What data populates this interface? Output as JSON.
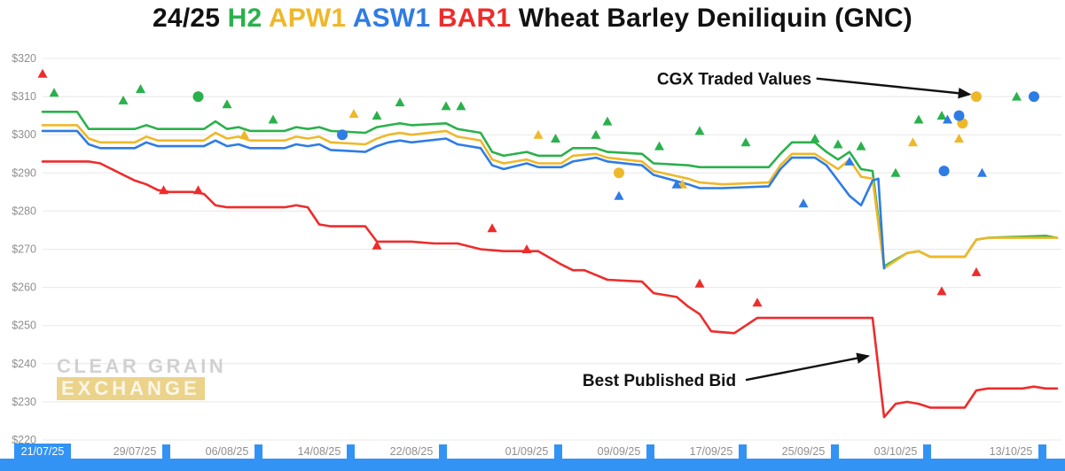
{
  "colors": {
    "h2_green": "#2bb14c",
    "apw1_gold": "#efb829",
    "asw1_blue": "#2e7ce4",
    "bar1_red": "#ee2c2c",
    "selection": "#3393f5",
    "axis_text": "#8f8f8f",
    "gridline": "#e8e8e8"
  },
  "title": {
    "parts": [
      {
        "text": "24/25 ",
        "color": "#111111"
      },
      {
        "text": "H2 ",
        "color": "#2bb14c"
      },
      {
        "text": "APW1 ",
        "color": "#efb829"
      },
      {
        "text": "ASW1 ",
        "color": "#2e7ce4"
      },
      {
        "text": "BAR1 ",
        "color": "#ee2c2c"
      },
      {
        "text": "Wheat Barley Deniliquin (GNC)",
        "color": "#111111"
      }
    ],
    "full": "24/25 H2 APW1 ASW1 BAR1 Wheat Barley Deniliquin (GNC)"
  },
  "watermark": {
    "line1": "CLEAR GRAIN",
    "line2": "EXCHANGE"
  },
  "chart_data": {
    "type": "line",
    "title": "24/25 H2 APW1 ASW1 BAR1 Wheat Barley Deniliquin (GNC)",
    "xlabel": "",
    "ylabel": "",
    "x_unit": "days since 21/07/25",
    "xlim": [
      0,
      88
    ],
    "ylim": [
      220,
      320
    ],
    "grid": "horizontal",
    "yticks": [
      {
        "value": 220,
        "label": "$220"
      },
      {
        "value": 230,
        "label": "$230"
      },
      {
        "value": 240,
        "label": "$240"
      },
      {
        "value": 250,
        "label": "$250"
      },
      {
        "value": 260,
        "label": "$260"
      },
      {
        "value": 270,
        "label": "$270"
      },
      {
        "value": 280,
        "label": "$280"
      },
      {
        "value": 290,
        "label": "$290"
      },
      {
        "value": 300,
        "label": "$300"
      },
      {
        "value": 310,
        "label": "$310"
      },
      {
        "value": 320,
        "label": "$320"
      }
    ],
    "xticks": [
      {
        "day": 0,
        "label": "21/07/25"
      },
      {
        "day": 8,
        "label": "29/07/25"
      },
      {
        "day": 16,
        "label": "06/08/25"
      },
      {
        "day": 24,
        "label": "14/08/25"
      },
      {
        "day": 32,
        "label": "22/08/25"
      },
      {
        "day": 42,
        "label": "01/09/25"
      },
      {
        "day": 50,
        "label": "09/09/25"
      },
      {
        "day": 58,
        "label": "17/09/25"
      },
      {
        "day": 66,
        "label": "25/09/25"
      },
      {
        "day": 74,
        "label": "03/10/25"
      },
      {
        "day": 84,
        "label": "13/10/25"
      }
    ],
    "annotations": [
      {
        "text": "CGX Traded Values",
        "text_at": [
          60,
          314.5
        ],
        "arrow_to": [
          80.4,
          310.6
        ]
      },
      {
        "text": "Best Published Bid",
        "text_at": [
          53.5,
          235.5
        ],
        "arrow_to": [
          71.6,
          242
        ]
      }
    ],
    "bid_lines": [
      {
        "name": "H2",
        "color": "#2bb14c",
        "points": [
          [
            0,
            306
          ],
          [
            3,
            306
          ],
          [
            4,
            301.5
          ],
          [
            8,
            301.5
          ],
          [
            9,
            302.5
          ],
          [
            10,
            301.5
          ],
          [
            14,
            301.5
          ],
          [
            15,
            303.5
          ],
          [
            16,
            301.5
          ],
          [
            17,
            302
          ],
          [
            18,
            301
          ],
          [
            21,
            301
          ],
          [
            22,
            302
          ],
          [
            23,
            301.5
          ],
          [
            24,
            302
          ],
          [
            25,
            301
          ],
          [
            28,
            300.5
          ],
          [
            29,
            302
          ],
          [
            30,
            302.5
          ],
          [
            31,
            303
          ],
          [
            32,
            302.5
          ],
          [
            35,
            303
          ],
          [
            36,
            301.5
          ],
          [
            37,
            301
          ],
          [
            38,
            300.5
          ],
          [
            39,
            295.5
          ],
          [
            40,
            294.5
          ],
          [
            42,
            295.5
          ],
          [
            43,
            294.5
          ],
          [
            45,
            294.5
          ],
          [
            46,
            296.5
          ],
          [
            48,
            296.5
          ],
          [
            49,
            295.5
          ],
          [
            52,
            295
          ],
          [
            53,
            292.5
          ],
          [
            56,
            292
          ],
          [
            57,
            291.5
          ],
          [
            63,
            291.5
          ],
          [
            64,
            295
          ],
          [
            65,
            298
          ],
          [
            67,
            298
          ],
          [
            68,
            295.5
          ],
          [
            69,
            293.5
          ],
          [
            70,
            295.5
          ],
          [
            71,
            291
          ],
          [
            72,
            290.5
          ],
          [
            73,
            265.5
          ],
          [
            75,
            269
          ],
          [
            76,
            269.5
          ],
          [
            77,
            268
          ],
          [
            80,
            268
          ],
          [
            81,
            272.5
          ],
          [
            82,
            273
          ],
          [
            87,
            273.5
          ],
          [
            88,
            273
          ]
        ]
      },
      {
        "name": "APW1",
        "color": "#efb829",
        "points": [
          [
            0,
            302.5
          ],
          [
            3,
            302.5
          ],
          [
            4,
            299
          ],
          [
            5,
            298
          ],
          [
            8,
            298
          ],
          [
            9,
            299.5
          ],
          [
            10,
            298.5
          ],
          [
            14,
            298.5
          ],
          [
            15,
            300.5
          ],
          [
            16,
            299
          ],
          [
            17,
            299.5
          ],
          [
            18,
            298.5
          ],
          [
            21,
            298.5
          ],
          [
            22,
            299.5
          ],
          [
            23,
            299
          ],
          [
            24,
            299.5
          ],
          [
            25,
            298
          ],
          [
            28,
            297.5
          ],
          [
            29,
            299
          ],
          [
            30,
            300
          ],
          [
            31,
            300.5
          ],
          [
            32,
            300
          ],
          [
            35,
            301
          ],
          [
            36,
            299.5
          ],
          [
            37,
            299
          ],
          [
            38,
            298.5
          ],
          [
            39,
            293.5
          ],
          [
            40,
            292.5
          ],
          [
            42,
            293.5
          ],
          [
            43,
            292.5
          ],
          [
            45,
            292.5
          ],
          [
            46,
            294.5
          ],
          [
            48,
            295
          ],
          [
            49,
            294
          ],
          [
            52,
            293
          ],
          [
            53,
            290.5
          ],
          [
            56,
            288.5
          ],
          [
            57,
            287.5
          ],
          [
            59,
            287
          ],
          [
            63,
            287.5
          ],
          [
            64,
            292
          ],
          [
            65,
            295
          ],
          [
            67,
            295
          ],
          [
            68,
            293
          ],
          [
            69,
            291
          ],
          [
            70,
            293.5
          ],
          [
            71,
            289
          ],
          [
            72,
            288.5
          ],
          [
            73,
            265
          ],
          [
            75,
            269
          ],
          [
            76,
            269.5
          ],
          [
            77,
            268
          ],
          [
            80,
            268
          ],
          [
            81,
            272.5
          ],
          [
            82,
            273
          ],
          [
            87,
            273
          ],
          [
            88,
            273
          ]
        ]
      },
      {
        "name": "ASW1",
        "color": "#2e7ce4",
        "points": [
          [
            0,
            301
          ],
          [
            3,
            301
          ],
          [
            4,
            297.5
          ],
          [
            5,
            296.5
          ],
          [
            8,
            296.5
          ],
          [
            9,
            298
          ],
          [
            10,
            297
          ],
          [
            14,
            297
          ],
          [
            15,
            298.5
          ],
          [
            16,
            297
          ],
          [
            17,
            297.5
          ],
          [
            18,
            296.5
          ],
          [
            21,
            296.5
          ],
          [
            22,
            297.5
          ],
          [
            23,
            297
          ],
          [
            24,
            297.5
          ],
          [
            25,
            296
          ],
          [
            28,
            295.5
          ],
          [
            29,
            297
          ],
          [
            30,
            298
          ],
          [
            31,
            298.5
          ],
          [
            32,
            298
          ],
          [
            35,
            299
          ],
          [
            36,
            297.5
          ],
          [
            37,
            297
          ],
          [
            38,
            296.5
          ],
          [
            39,
            292
          ],
          [
            40,
            291
          ],
          [
            42,
            292.5
          ],
          [
            43,
            291.5
          ],
          [
            45,
            291.5
          ],
          [
            46,
            293
          ],
          [
            48,
            294
          ],
          [
            49,
            293
          ],
          [
            52,
            292
          ],
          [
            53,
            289.5
          ],
          [
            56,
            287
          ],
          [
            57,
            286
          ],
          [
            59,
            286
          ],
          [
            63,
            286.5
          ],
          [
            64,
            291
          ],
          [
            65,
            294
          ],
          [
            67,
            294
          ],
          [
            68,
            292
          ],
          [
            69,
            288
          ],
          [
            70,
            284
          ],
          [
            71,
            281.5
          ],
          [
            72,
            288
          ],
          [
            72.5,
            288.5
          ],
          [
            73,
            265
          ]
        ]
      },
      {
        "name": "BAR1",
        "color": "#ee2c2c",
        "points": [
          [
            0,
            293
          ],
          [
            4,
            293
          ],
          [
            5,
            292.5
          ],
          [
            6,
            291
          ],
          [
            7,
            289.5
          ],
          [
            8,
            288
          ],
          [
            9,
            287
          ],
          [
            10,
            285.5
          ],
          [
            11,
            285
          ],
          [
            13,
            285
          ],
          [
            14,
            284.5
          ],
          [
            15,
            281.5
          ],
          [
            16,
            281
          ],
          [
            21,
            281
          ],
          [
            22,
            281.5
          ],
          [
            23,
            281
          ],
          [
            24,
            276.5
          ],
          [
            25,
            276
          ],
          [
            28,
            276
          ],
          [
            29,
            272
          ],
          [
            32,
            272
          ],
          [
            34,
            271.5
          ],
          [
            36,
            271.5
          ],
          [
            38,
            270
          ],
          [
            40,
            269.5
          ],
          [
            43,
            269.5
          ],
          [
            45,
            266
          ],
          [
            46,
            264.5
          ],
          [
            47,
            264.5
          ],
          [
            49,
            262
          ],
          [
            52,
            261.5
          ],
          [
            53,
            258.5
          ],
          [
            55,
            257.5
          ],
          [
            56,
            255
          ],
          [
            57,
            253
          ],
          [
            58,
            248.5
          ],
          [
            60,
            248
          ],
          [
            61,
            250
          ],
          [
            62,
            252
          ],
          [
            71,
            252
          ],
          [
            72,
            252
          ],
          [
            73,
            226
          ],
          [
            74,
            229.5
          ],
          [
            75,
            230
          ],
          [
            76,
            229.5
          ],
          [
            77,
            228.5
          ],
          [
            80,
            228.5
          ],
          [
            81,
            233
          ],
          [
            82,
            233.5
          ],
          [
            85,
            233.5
          ],
          [
            86,
            234
          ],
          [
            87,
            233.5
          ],
          [
            88,
            233.5
          ]
        ]
      }
    ],
    "trades": [
      {
        "series": "H2",
        "marker": "triangle",
        "points": [
          [
            1,
            311
          ],
          [
            7,
            309
          ],
          [
            8.5,
            312
          ],
          [
            16,
            308
          ],
          [
            20,
            304
          ],
          [
            29,
            305
          ],
          [
            31,
            308.5
          ],
          [
            35,
            307.5
          ],
          [
            36.3,
            307.5
          ],
          [
            44.5,
            299
          ],
          [
            48,
            300
          ],
          [
            49,
            303.5
          ],
          [
            53.5,
            297
          ],
          [
            57,
            301
          ],
          [
            61,
            298
          ],
          [
            67,
            299
          ],
          [
            69,
            297.5
          ],
          [
            71,
            297
          ],
          [
            74,
            290
          ],
          [
            76,
            304
          ],
          [
            78,
            305
          ],
          [
            84.5,
            310
          ]
        ]
      },
      {
        "series": "H2",
        "marker": "circle",
        "points": [
          [
            13.5,
            310
          ]
        ]
      },
      {
        "series": "APW1",
        "marker": "triangle",
        "points": [
          [
            17.5,
            300
          ],
          [
            27,
            305.5
          ],
          [
            43,
            300
          ],
          [
            55.5,
            287
          ],
          [
            75.5,
            298
          ],
          [
            79.5,
            299
          ]
        ]
      },
      {
        "series": "APW1",
        "marker": "circle",
        "points": [
          [
            50,
            290
          ],
          [
            79.8,
            303
          ],
          [
            81,
            310
          ]
        ]
      },
      {
        "series": "ASW1",
        "marker": "triangle",
        "points": [
          [
            50,
            284
          ],
          [
            55,
            287
          ],
          [
            66,
            282
          ],
          [
            70,
            293
          ],
          [
            78.5,
            304
          ],
          [
            81.5,
            290
          ]
        ]
      },
      {
        "series": "ASW1",
        "marker": "circle",
        "points": [
          [
            26,
            300
          ],
          [
            78.2,
            290.5
          ],
          [
            79.5,
            305
          ],
          [
            86,
            310
          ]
        ]
      },
      {
        "series": "BAR1",
        "marker": "triangle",
        "points": [
          [
            0,
            316
          ],
          [
            10.5,
            285.5
          ],
          [
            13.5,
            285.5
          ],
          [
            29,
            271
          ],
          [
            39,
            275.5
          ],
          [
            42,
            270
          ],
          [
            57,
            261
          ],
          [
            62,
            256
          ],
          [
            78,
            259
          ],
          [
            81,
            264
          ]
        ]
      }
    ]
  }
}
